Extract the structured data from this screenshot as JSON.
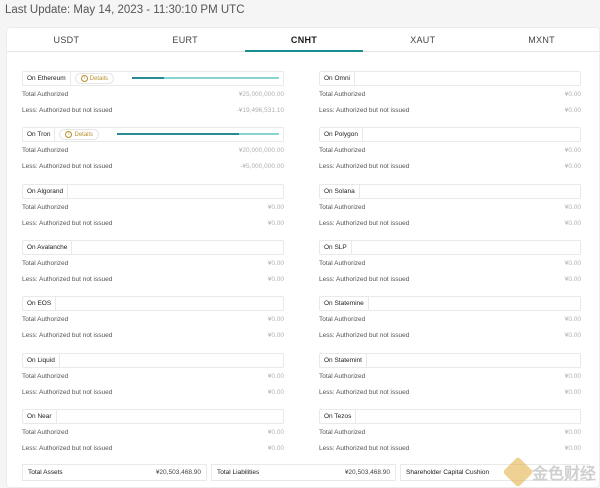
{
  "last_update": "Last Update: May 14, 2023 - 11:30:10 PM UTC",
  "tabs": [
    "USDT",
    "EURT",
    "CNHT",
    "XAUT",
    "MXNT"
  ],
  "active_tab": "CNHT",
  "labels": {
    "total_authorized": "Total Authorized",
    "less": "Less: Authorized but not issued",
    "details": "Details"
  },
  "left": [
    {
      "name": "On Ethereum",
      "details": true,
      "total": "¥25,000,000.00",
      "less": "-¥19,496,531.10",
      "bar_fraction": 0.22
    },
    {
      "name": "On Tron",
      "details": true,
      "total": "¥20,000,000.00",
      "less": "-¥5,000,000.00",
      "bar_fraction": 0.75
    },
    {
      "name": "On Algorand",
      "total": "¥0.00",
      "less": "¥0.00"
    },
    {
      "name": "On Avalanche",
      "total": "¥0.00",
      "less": "¥0.00"
    },
    {
      "name": "On EOS",
      "total": "¥0.00",
      "less": "¥0.00"
    },
    {
      "name": "On Liquid",
      "total": "¥0.00",
      "less": "¥0.00"
    },
    {
      "name": "On Near",
      "total": "¥0.00",
      "less": "¥0.00"
    }
  ],
  "right": [
    {
      "name": "On Omni",
      "total": "¥0.00",
      "less": "¥0.00"
    },
    {
      "name": "On Polygon",
      "total": "¥0.00",
      "less": "¥0.00"
    },
    {
      "name": "On Solana",
      "total": "¥0.00",
      "less": "¥0.00"
    },
    {
      "name": "On SLP",
      "total": "¥0.00",
      "less": "¥0.00"
    },
    {
      "name": "On Statemine",
      "total": "¥0.00",
      "less": "¥0.00"
    },
    {
      "name": "On Statemint",
      "total": "¥0.00",
      "less": "¥0.00"
    },
    {
      "name": "On Tezos",
      "total": "¥0.00",
      "less": "¥0.00"
    }
  ],
  "footer": {
    "total_assets_label": "Total Assets",
    "total_assets_value": "¥20,503,468.90",
    "total_liabilities_label": "Total Liabilities",
    "total_liabilities_value": "¥20,503,468.90",
    "shareholder_label": "Shareholder Capital Cushion"
  },
  "watermark": "金色财经",
  "colors": {
    "accent": "#1a8c92",
    "details": "#b8912d",
    "bar_light": "#8ad3d3",
    "bar_dark": "#2a8a93"
  }
}
